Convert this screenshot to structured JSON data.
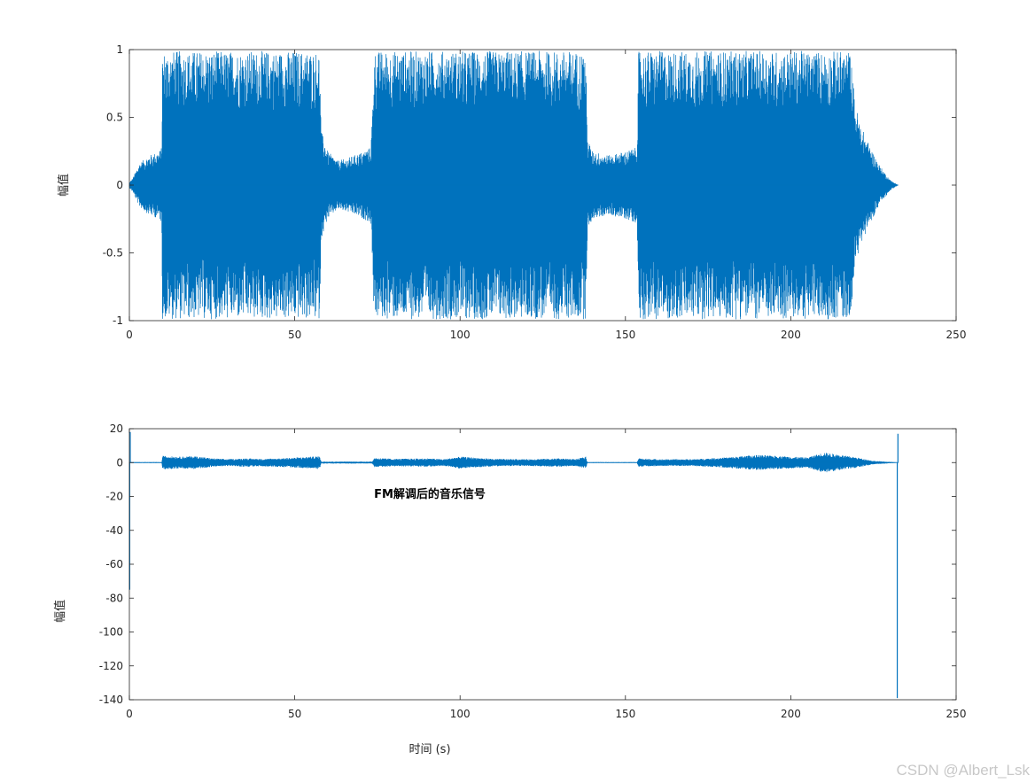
{
  "colors": {
    "series": "#0072BD",
    "axes": "#262626",
    "background": "#ffffff"
  },
  "watermark": "CSDN @Albert_Lsk",
  "chart_data": [
    {
      "type": "line",
      "title": "",
      "xlabel": "",
      "ylabel": "幅值",
      "xlim": [
        0,
        250
      ],
      "ylim": [
        -1,
        1
      ],
      "xticks": [
        0,
        50,
        100,
        150,
        200,
        250
      ],
      "yticks": [
        -1,
        -0.5,
        0,
        0.5,
        1
      ],
      "xtick_labels": [
        "0",
        "50",
        "100",
        "150",
        "200",
        "250"
      ],
      "ytick_labels": [
        "-1",
        "-0.5",
        "0",
        "0.5",
        "1"
      ],
      "grid": false,
      "annotation": "",
      "series": [
        {
          "envelope": {
            "t": [
              0,
              1,
              3,
              6,
              9,
              9.8,
              10,
              20,
              30,
              40,
              50,
              57.5,
              58,
              60,
              63,
              66,
              70,
              73,
              73.5,
              74,
              80,
              90,
              100,
              110,
              120,
              130,
              138,
              138.5,
              140,
              145,
              150,
              153.5,
              154,
              160,
              170,
              180,
              190,
              200,
              210,
              218,
              219.5,
              221,
              224,
              227,
              230,
              232.5
            ],
            "upper": [
              0.02,
              0.05,
              0.16,
              0.22,
              0.25,
              0.28,
              0.99,
              0.99,
              0.99,
              0.99,
              0.99,
              0.99,
              0.4,
              0.25,
              0.18,
              0.2,
              0.24,
              0.28,
              0.55,
              0.99,
              0.99,
              0.99,
              0.99,
              0.99,
              0.99,
              0.99,
              0.99,
              0.35,
              0.25,
              0.22,
              0.25,
              0.28,
              0.99,
              0.99,
              0.99,
              0.99,
              0.99,
              0.99,
              0.99,
              0.99,
              0.6,
              0.45,
              0.28,
              0.14,
              0.04,
              0.0
            ],
            "lower": [
              -0.02,
              -0.05,
              -0.16,
              -0.22,
              -0.25,
              -0.28,
              -0.99,
              -0.99,
              -0.99,
              -0.99,
              -0.99,
              -0.99,
              -0.4,
              -0.25,
              -0.18,
              -0.2,
              -0.24,
              -0.28,
              -0.55,
              -0.99,
              -0.99,
              -0.99,
              -0.99,
              -0.99,
              -0.99,
              -0.99,
              -0.99,
              -0.35,
              -0.25,
              -0.22,
              -0.25,
              -0.28,
              -0.99,
              -0.99,
              -0.99,
              -0.99,
              -0.99,
              -0.99,
              -0.99,
              -0.99,
              -0.6,
              -0.45,
              -0.28,
              -0.14,
              -0.04,
              0.0
            ]
          }
        }
      ]
    },
    {
      "type": "line",
      "title": "",
      "xlabel": "时间 (s)",
      "ylabel": "幅值",
      "xlim": [
        0,
        250
      ],
      "ylim": [
        -140,
        20
      ],
      "xticks": [
        0,
        50,
        100,
        150,
        200,
        250
      ],
      "yticks": [
        -140,
        -120,
        -100,
        -80,
        -60,
        -40,
        -20,
        0,
        20
      ],
      "xtick_labels": [
        "0",
        "50",
        "100",
        "150",
        "200",
        "250"
      ],
      "ytick_labels": [
        "-140",
        "-120",
        "-100",
        "-80",
        "-60",
        "-40",
        "-20",
        "0",
        "20"
      ],
      "grid": false,
      "annotation": "FM解调后的音乐信号",
      "series": [
        {
          "envelope": {
            "t": [
              0,
              9.8,
              10,
              15,
              20,
              25,
              30,
              35,
              40,
              45,
              50,
              55,
              57.5,
              58,
              73.5,
              74,
              80,
              90,
              95,
              100,
              110,
              120,
              130,
              135,
              138,
              138.5,
              153.5,
              154,
              160,
              170,
              180,
              190,
              195,
              200,
              205,
              210,
              215,
              220,
              225,
              231,
              232.5
            ],
            "upper": [
              0.3,
              0.3,
              4,
              3.5,
              3.8,
              2.5,
              2,
              2.5,
              2.2,
              2.5,
              3,
              3.5,
              3.8,
              0.6,
              0.6,
              2.8,
              2.2,
              2.5,
              2,
              3.5,
              2.2,
              2.0,
              2.5,
              2.0,
              3.5,
              0.3,
              0.3,
              2.5,
              2.0,
              2.0,
              3.0,
              4.5,
              4.0,
              3.5,
              3.0,
              6.0,
              4.5,
              3.0,
              1.0,
              0.3,
              0.2
            ],
            "lower": [
              -0.3,
              -0.3,
              -4,
              -3.5,
              -3.8,
              -2.5,
              -2,
              -2.5,
              -2.2,
              -2.5,
              -3,
              -3.5,
              -3.8,
              -0.6,
              -0.6,
              -2.8,
              -2.2,
              -2.5,
              -2,
              -3.5,
              -2.2,
              -2.0,
              -2.5,
              -2.0,
              -3.5,
              -0.3,
              -0.3,
              -2.5,
              -2.0,
              -2.0,
              -3.0,
              -4.5,
              -4.0,
              -3.5,
              -3.0,
              -6.0,
              -4.5,
              -3.0,
              -1.0,
              -0.3,
              -0.2
            ]
          },
          "spikes": [
            {
              "x": 0.1,
              "y": -75
            },
            {
              "x": 0.25,
              "y": 18
            },
            {
              "x": 232.2,
              "y": -139
            },
            {
              "x": 232.4,
              "y": 17
            }
          ]
        }
      ]
    }
  ]
}
